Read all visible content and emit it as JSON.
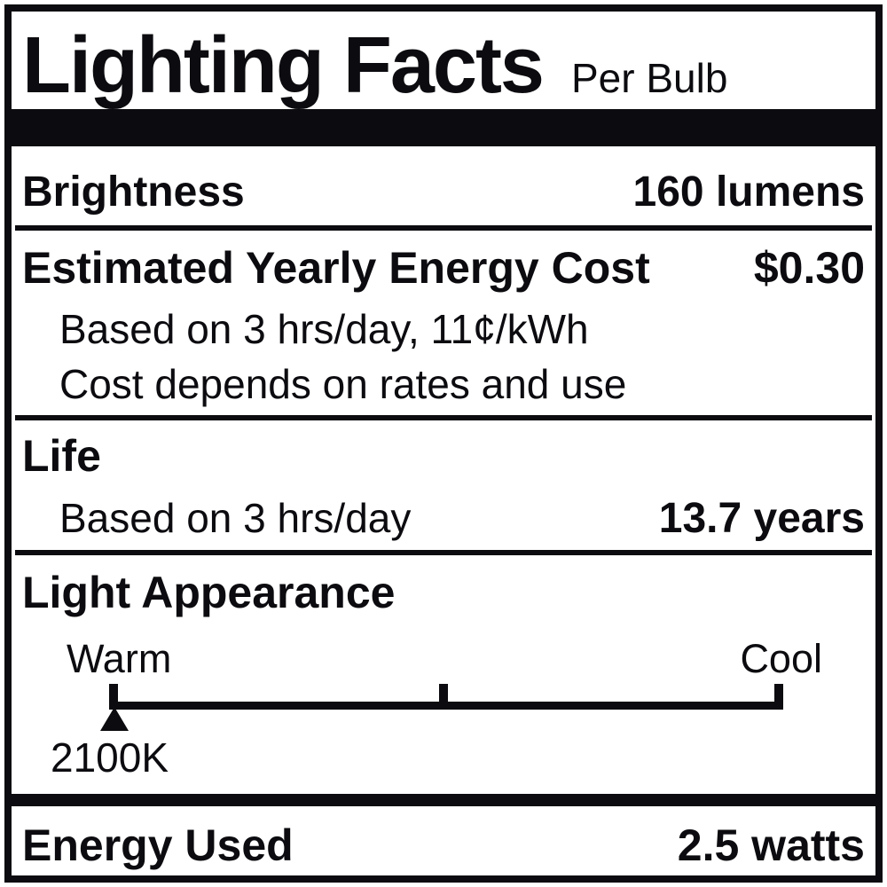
{
  "label": {
    "title": "Lighting Facts",
    "subtitle": "Per Bulb",
    "brightness": {
      "name": "Brightness",
      "value": "160 lumens"
    },
    "energy_cost": {
      "name": "Estimated Yearly Energy Cost",
      "value": "$0.30",
      "notes": [
        "Based on 3 hrs/day, 11¢/kWh",
        "Cost depends on rates and use"
      ]
    },
    "life": {
      "name": "Life",
      "basis": "Based on 3 hrs/day",
      "value": "13.7 years"
    },
    "light_appearance": {
      "name": "Light Appearance",
      "warm_label": "Warm",
      "cool_label": "Cool",
      "temperature": "2100K",
      "marker_position": "warm-end"
    },
    "energy_used": {
      "name": "Energy Used",
      "value": "2.5 watts"
    }
  },
  "colors": {
    "ink": "#0c0c10",
    "paper": "#ffffff"
  }
}
